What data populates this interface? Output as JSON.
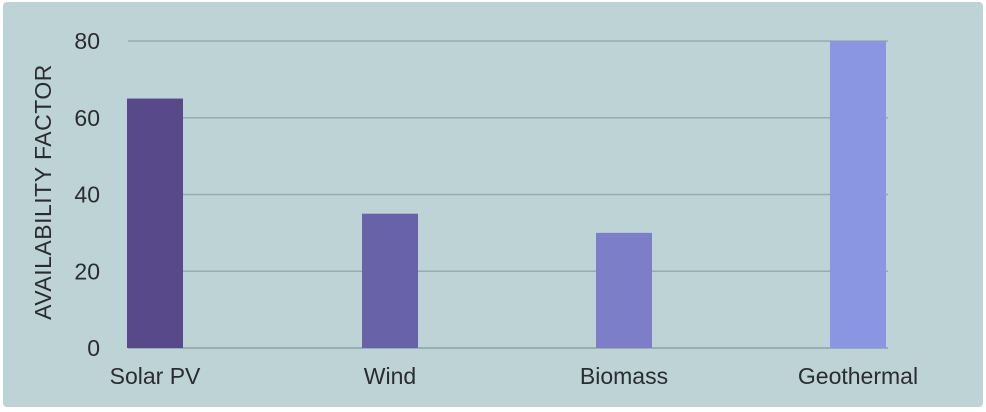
{
  "chart_data": {
    "type": "bar",
    "title": "",
    "xlabel": "",
    "ylabel": "AVAILABILITY FACTOR",
    "categories": [
      "Solar PV",
      "Wind",
      "Biomass",
      "Geothermal"
    ],
    "values": [
      65,
      35,
      30,
      80
    ],
    "ylim": [
      0,
      80
    ],
    "yticks": [
      0,
      20,
      40,
      60,
      80
    ],
    "grid": true,
    "legend": "none",
    "bar_colors": [
      "#584a8a",
      "#6863a8",
      "#7c7ec7",
      "#8a96e2"
    ],
    "background_color": "#bdd3d6"
  }
}
